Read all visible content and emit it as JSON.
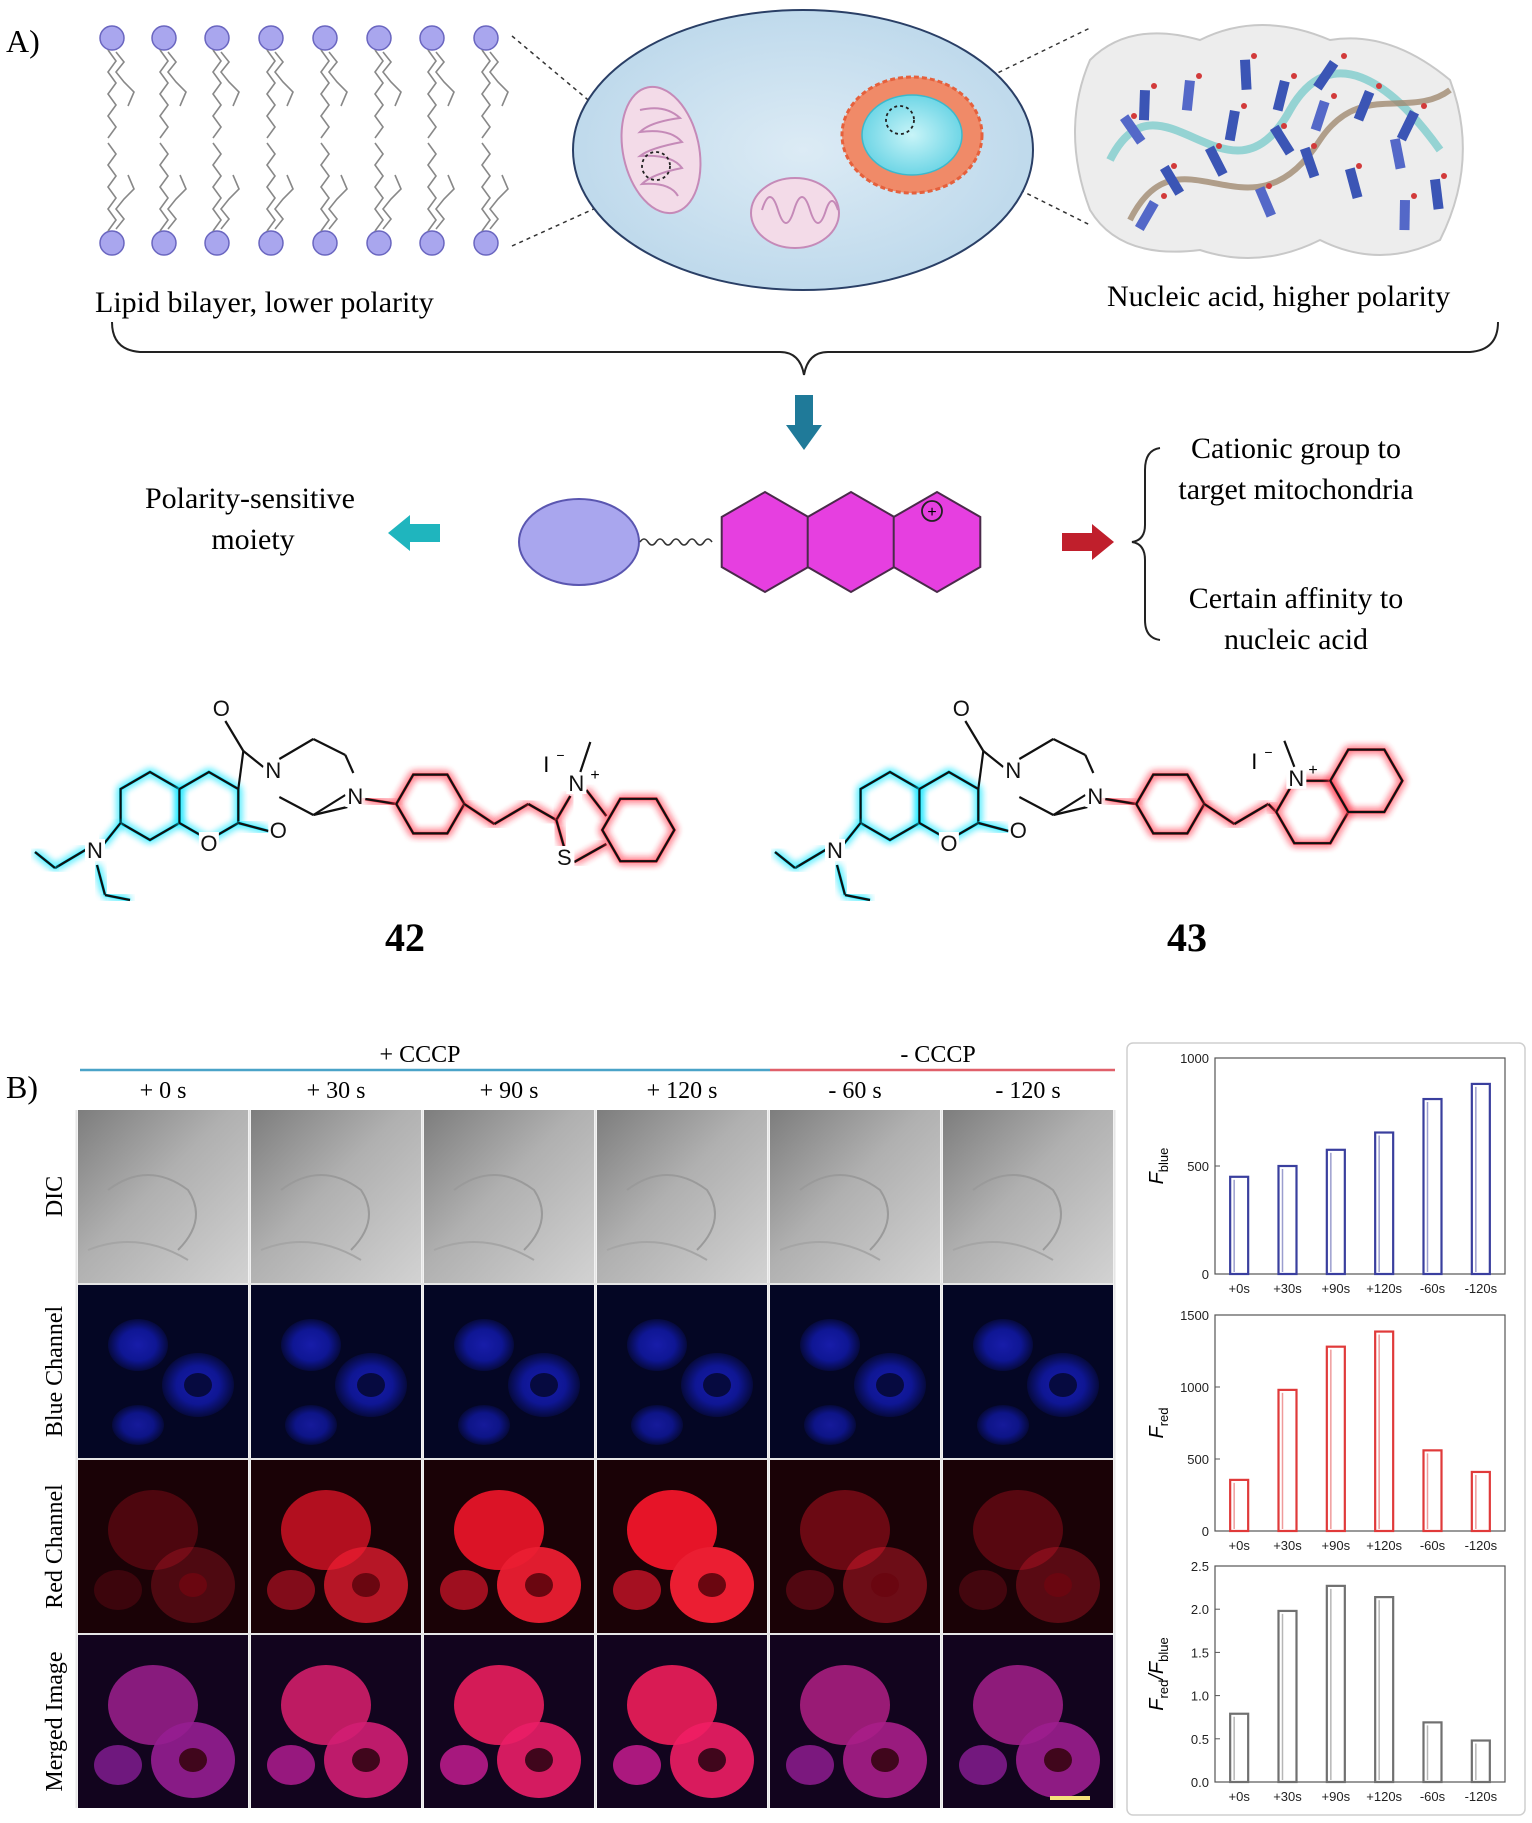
{
  "panel_a": {
    "label": "A)",
    "lipid_caption": "Lipid bilayer, lower polarity",
    "nucleic_caption": "Nucleic acid, higher polarity",
    "moiety_line1": "Polarity-sensitive",
    "moiety_line2": "moiety",
    "cationic_line1": "Cationic group to",
    "cationic_line2": "target mitochondria",
    "affinity_line1": "Certain affinity to",
    "affinity_line2": "nucleic acid",
    "charge_symbol": "+",
    "compound_1": {
      "number": "42",
      "counterion": "I",
      "counterion_sup": "−",
      "hetero_n": "N",
      "hetero_s": "S",
      "amine_n": "N",
      "pip_n1": "N",
      "pip_n2": "N",
      "o_ring": "O",
      "o_keto": "O",
      "o_amide": "O",
      "plus": "+"
    },
    "compound_2": {
      "number": "43",
      "counterion": "I",
      "counterion_sup": "−",
      "hetero_n": "N",
      "amine_n": "N",
      "pip_n1": "N",
      "pip_n2": "N",
      "o_ring": "O",
      "o_keto": "O",
      "o_amide": "O",
      "plus": "+"
    },
    "colors": {
      "coumarin_glow": "#00e5ff",
      "cation_glow": "#ff3b4e",
      "cell": "#cfe3f0",
      "lipid_head": "#a9a6ee",
      "hexagon_fill": "#e63fe0"
    }
  },
  "panel_b": {
    "label": "B)",
    "group_plus": "+ CCCP",
    "group_minus": "- CCCP",
    "time_points": [
      "+ 0 s",
      "+ 30 s",
      "+ 90 s",
      "+ 120 s",
      "- 60 s",
      "- 120 s"
    ],
    "row_labels": [
      "DIC",
      "Blue Channel",
      "Red Channel",
      "Merged Image"
    ],
    "colors": {
      "plus_line": "#4aa3c8",
      "minus_line": "#e0606a"
    }
  },
  "chart_data": [
    {
      "type": "bar",
      "categories": [
        "+0s",
        "+30s",
        "+90s",
        "+120s",
        "-60s",
        "-120s"
      ],
      "values": [
        450,
        500,
        575,
        655,
        810,
        880
      ],
      "ylabel": "F",
      "ylabel_sub": "blue",
      "ylim": [
        0,
        1000
      ],
      "yticks": [
        "0",
        "500",
        "1000"
      ],
      "bar_color": "#3a3f9e",
      "grid": false
    },
    {
      "type": "bar",
      "categories": [
        "+0s",
        "+30s",
        "+90s",
        "+120s",
        "-60s",
        "-120s"
      ],
      "values": [
        355,
        980,
        1280,
        1385,
        560,
        410
      ],
      "ylabel": "F",
      "ylabel_sub": "red",
      "ylim": [
        0,
        1500
      ],
      "yticks": [
        "0",
        "500",
        "1000",
        "1500"
      ],
      "bar_color": "#e03a3a",
      "grid": false
    },
    {
      "type": "bar",
      "categories": [
        "+0s",
        "+30s",
        "+90s",
        "+120s",
        "-60s",
        "-120s"
      ],
      "values": [
        0.79,
        1.98,
        2.27,
        2.14,
        0.69,
        0.48
      ],
      "ylabel": "F",
      "ylabel_sub": "red",
      "ylabel_mid": "/F",
      "ylabel_sub2": "blue",
      "ylim": [
        0,
        2.5
      ],
      "yticks": [
        "0.0",
        "0.5",
        "1.0",
        "1.5",
        "2.0",
        "2.5"
      ],
      "bar_color": "#707070",
      "grid": false
    }
  ]
}
